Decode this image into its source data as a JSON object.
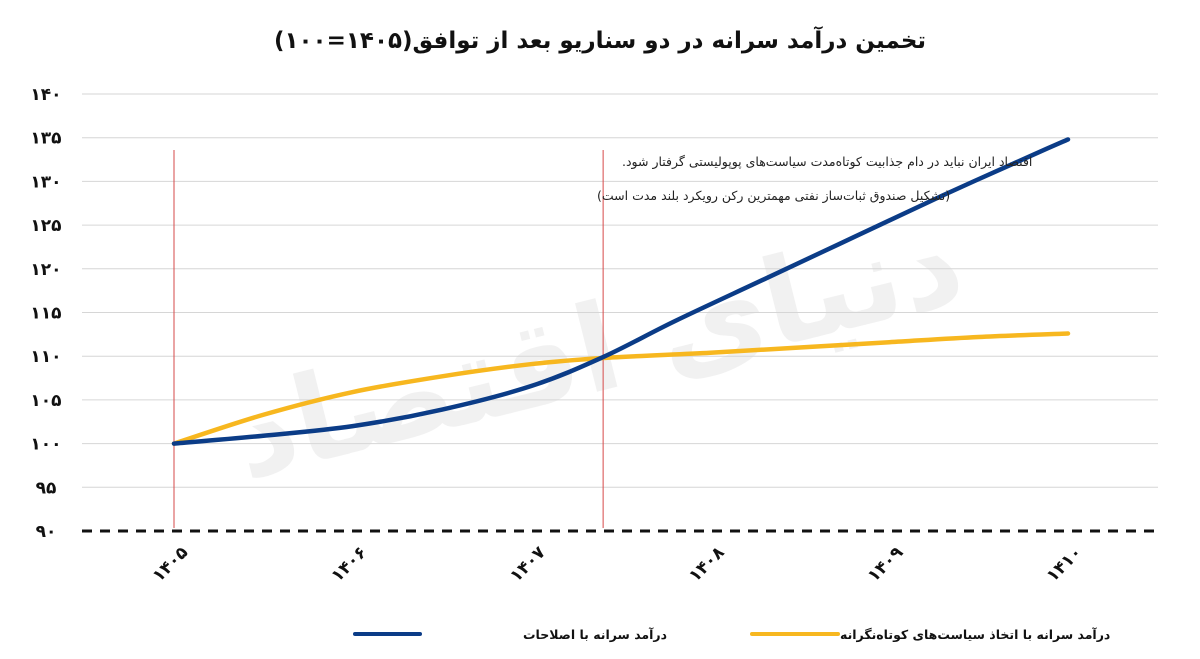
{
  "chart_data": {
    "type": "line",
    "title": "تخمین درآمد سرانه در دو سناریو بعد از توافق(۱۴۰۵=۱۰۰)",
    "watermark": "دنیای اقتصاد",
    "x_ticks": [
      {
        "value": 1405,
        "label": "۱۴۰۵"
      },
      {
        "value": 1406,
        "label": "۱۴۰۶"
      },
      {
        "value": 1407,
        "label": "۱۴۰۷"
      },
      {
        "value": 1408,
        "label": "۱۴۰۸"
      },
      {
        "value": 1409,
        "label": "۱۴۰۹"
      },
      {
        "value": 1410,
        "label": "۱۴۱۰"
      }
    ],
    "y_ticks": [
      {
        "value": 90,
        "label": "۹۰"
      },
      {
        "value": 95,
        "label": "۹۵"
      },
      {
        "value": 100,
        "label": "۱۰۰"
      },
      {
        "value": 105,
        "label": "۱۰۵"
      },
      {
        "value": 110,
        "label": "۱۱۰"
      },
      {
        "value": 115,
        "label": "۱۱۵"
      },
      {
        "value": 120,
        "label": "۱۲۰"
      },
      {
        "value": 125,
        "label": "۱۲۵"
      },
      {
        "value": 130,
        "label": "۱۳۰"
      },
      {
        "value": 135,
        "label": "۱۳۵"
      },
      {
        "value": 140,
        "label": "۱۴۰"
      }
    ],
    "xlim": [
      1404.5,
      1410.5
    ],
    "ylim": [
      90,
      140
    ],
    "grid": true,
    "baseline_dashed_at": 90,
    "vlines": [
      1405,
      1407.4
    ],
    "annotations": [
      "اقتصاد ایران نباید در دام جذابیت کوتاه‌مدت سیاست‌های پوپولیستی گرفتار شود.",
      "(تشکیل صندوق ثبات‌ساز نفتی مهمترین رکن رویکرد بلند مدت است)"
    ],
    "legend_position": "bottom-center",
    "series": [
      {
        "name": "درآمد سرانه با اصلاحات",
        "color": "#0b3c87",
        "points": [
          [
            1405,
            100
          ],
          [
            1405.5,
            100.9
          ],
          [
            1406,
            102
          ],
          [
            1406.5,
            103.9
          ],
          [
            1407,
            106.6
          ],
          [
            1407.4,
            109.9
          ],
          [
            1407.8,
            114
          ],
          [
            1408.3,
            118.8
          ],
          [
            1408.8,
            123.6
          ],
          [
            1409.3,
            128.4
          ],
          [
            1409.8,
            133
          ],
          [
            1410,
            134.8
          ]
        ]
      },
      {
        "name": "درآمد سرانه با اتخاذ سیاست‌های کوتاه‌نگرانه",
        "color": "#f7b71f",
        "points": [
          [
            1405,
            100
          ],
          [
            1405.5,
            103.3
          ],
          [
            1406,
            105.9
          ],
          [
            1406.5,
            107.7
          ],
          [
            1407,
            109.1
          ],
          [
            1407.4,
            109.8
          ],
          [
            1408,
            110.4
          ],
          [
            1408.5,
            111
          ],
          [
            1409,
            111.6
          ],
          [
            1409.5,
            112.2
          ],
          [
            1410,
            112.6
          ]
        ]
      }
    ]
  }
}
